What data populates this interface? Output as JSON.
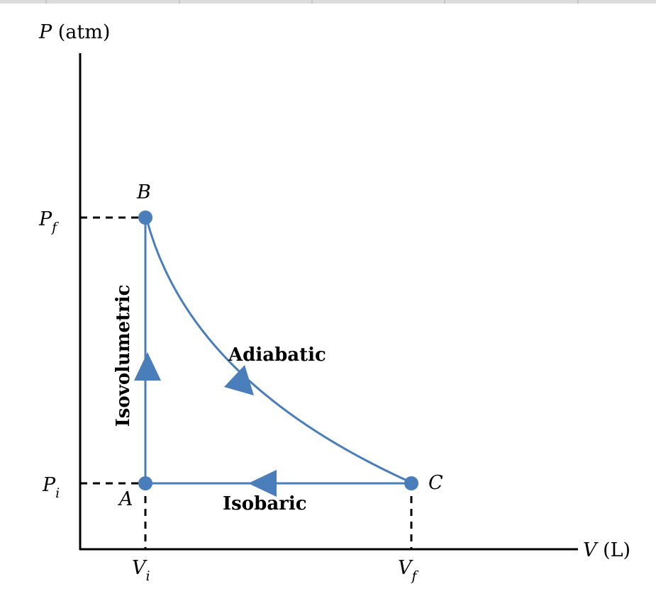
{
  "axes": {
    "y_label": {
      "symbol": "P",
      "unit": "(atm)"
    },
    "x_label": {
      "symbol": "V",
      "unit": "(L)"
    },
    "y_ticks": [
      {
        "symbol": "P",
        "subscript": "f"
      },
      {
        "symbol": "P",
        "subscript": "i"
      }
    ],
    "x_ticks": [
      {
        "symbol": "V",
        "subscript": "i"
      },
      {
        "symbol": "V",
        "subscript": "f"
      }
    ]
  },
  "points": [
    {
      "label": "A"
    },
    {
      "label": "B"
    },
    {
      "label": "C"
    }
  ],
  "processes": [
    {
      "label": "Isovolumetric"
    },
    {
      "label": "Adiabatic"
    },
    {
      "label": "Isobaric"
    }
  ]
}
